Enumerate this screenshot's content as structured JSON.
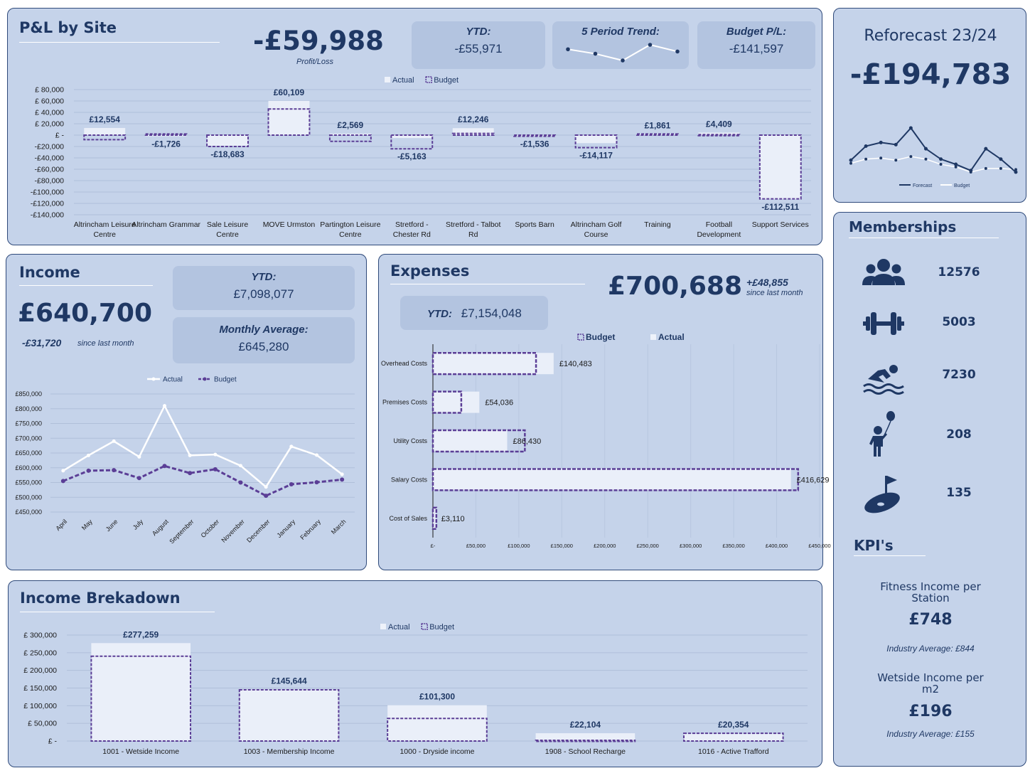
{
  "pl": {
    "title": "P&L by Site",
    "total": "-£59,988",
    "total_label": "Profit/Loss",
    "ytd_label": "YTD:",
    "ytd_value": "-£55,971",
    "trend_label": "5 Period Trend:",
    "trend_values": [
      3,
      1,
      -2,
      5,
      2
    ],
    "budget_label": "Budget P/L:",
    "budget_value": "-£141,597"
  },
  "reforecast": {
    "title": "Reforecast 23/24",
    "value": "-£194,783",
    "legend": [
      "Forecast",
      "Budget"
    ],
    "forecast": [
      -22,
      5,
      12,
      8,
      40,
      0,
      -20,
      -30,
      -42,
      0,
      -20,
      -45
    ],
    "budget": [
      -28,
      -20,
      -18,
      -22,
      -15,
      -20,
      -30,
      -35,
      -45,
      -38,
      -38,
      -40
    ]
  },
  "memberships": {
    "title": "Memberships",
    "items": [
      {
        "icon": "group-icon",
        "value": "12576"
      },
      {
        "icon": "dumbbell-icon",
        "value": "5003"
      },
      {
        "icon": "swimmer-icon",
        "value": "7230"
      },
      {
        "icon": "child-balloon-icon",
        "value": "208"
      },
      {
        "icon": "golf-icon",
        "value": "135"
      }
    ]
  },
  "kpis": {
    "title": "KPI's",
    "items": [
      {
        "label1": "Fitness Income per",
        "label2": "Station",
        "value": "£748",
        "avg": "Industry Average: £844"
      },
      {
        "label1": "Wetside Income per",
        "label2": "m2",
        "value": "£196",
        "avg": "Industry Average: £155"
      }
    ]
  },
  "income": {
    "title": "Income",
    "value": "£640,700",
    "change": "-£31,720",
    "change_label": "since last month",
    "ytd_label": "YTD:",
    "ytd_value": "£7,098,077",
    "avg_label": "Monthly Average:",
    "avg_value": "£645,280"
  },
  "expenses": {
    "title": "Expenses",
    "value": "£700,688",
    "change": "+£48,855",
    "change_label": "since last month",
    "ytd_label": "YTD:",
    "ytd_value": "£7,154,048"
  },
  "breakdown": {
    "title": "Income Brekadown"
  },
  "colors": {
    "panel": "#c5d3ea",
    "dark": "#1f3864",
    "budget": "#5b3e96",
    "actual": "#eaeff9"
  },
  "chart_data": [
    {
      "type": "bar",
      "title": "P&L by Site",
      "categories": [
        "Altrincham Leisure Centre",
        "Altrincham Grammar",
        "Sale Leisure Centre",
        "MOVE Urmston",
        "Partington Leisure Centre",
        "Stretford - Chester Rd",
        "Stretford - Talbot Rd",
        "Sports Barn",
        "Altrincham Golf Course",
        "Training",
        "Football Development",
        "Support Services"
      ],
      "series": [
        {
          "name": "Actual",
          "values": [
            12554,
            -1726,
            -18683,
            60109,
            2569,
            -5163,
            12246,
            -1536,
            -14117,
            1861,
            4409,
            -112511
          ]
        },
        {
          "name": "Budget",
          "values": [
            -8000,
            2000,
            -20000,
            46000,
            -11000,
            -24000,
            3000,
            -2000,
            -22000,
            2000,
            1000,
            -112000
          ]
        }
      ],
      "data_labels": [
        "£12,554",
        "-£1,726",
        "-£18,683",
        "£60,109",
        "£2,569",
        "-£5,163",
        "£12,246",
        "-£1,536",
        "-£14,117",
        "£1,861",
        "£4,409",
        "-£112,511"
      ],
      "y_ticks": [
        "£ 80,000",
        "£ 60,000",
        "£ 40,000",
        "£ 20,000",
        "£ -",
        "-£20,000",
        "-£40,000",
        "-£60,000",
        "-£80,000",
        "-£100,000",
        "-£120,000",
        "-£140,000"
      ],
      "ylim": [
        -140000,
        80000
      ],
      "legend": "top-center"
    },
    {
      "type": "line",
      "title": "Income",
      "categories": [
        "April",
        "May",
        "June",
        "July",
        "August",
        "September",
        "October",
        "November",
        "December",
        "January",
        "February",
        "March"
      ],
      "series": [
        {
          "name": "Actual",
          "values": [
            590000,
            642000,
            690000,
            637000,
            810000,
            642000,
            645000,
            607000,
            535000,
            672000,
            643000,
            578000
          ]
        },
        {
          "name": "Budget",
          "values": [
            555000,
            590000,
            592000,
            565000,
            606000,
            582000,
            595000,
            550000,
            505000,
            544000,
            551000,
            560000
          ]
        }
      ],
      "y_ticks": [
        "£850,000",
        "£800,000",
        "£750,000",
        "£700,000",
        "£650,000",
        "£600,000",
        "£550,000",
        "£500,000",
        "£450,000"
      ],
      "ylim": [
        450000,
        850000
      ],
      "legend": "top-center"
    },
    {
      "type": "bar",
      "title": "Expenses",
      "categories": [
        "Overhead Costs",
        "Premises Costs",
        "Utility Costs",
        "Salary Costs",
        "Cost of Sales"
      ],
      "series": [
        {
          "name": "Actual",
          "values": [
            140483,
            54036,
            86430,
            416629,
            3110
          ]
        },
        {
          "name": "Budget",
          "values": [
            120000,
            33000,
            107000,
            425000,
            4000
          ]
        }
      ],
      "data_labels": [
        "£140,483",
        "£54,036",
        "£86,430",
        "£416,629",
        "£3,110"
      ],
      "x_ticks": [
        "£-",
        "£50,000",
        "£100,000",
        "£150,000",
        "£200,000",
        "£250,000",
        "£300,000",
        "£350,000",
        "£400,000",
        "£450,000"
      ],
      "xlim": [
        0,
        450000
      ],
      "legend": "top-center"
    },
    {
      "type": "bar",
      "title": "Income Brekadown",
      "categories": [
        "1001 - Wetside Income",
        "1003 - Membership Income",
        "1000 - Dryside income",
        "1908 - School Recharge",
        "1016 - Active Trafford"
      ],
      "series": [
        {
          "name": "Actual",
          "values": [
            277259,
            145644,
            101300,
            22104,
            20354
          ]
        },
        {
          "name": "Budget",
          "values": [
            240000,
            145000,
            64000,
            2000,
            22000
          ]
        }
      ],
      "data_labels": [
        "£277,259",
        "£145,644",
        "£101,300",
        "£22,104",
        "£20,354"
      ],
      "y_ticks": [
        "£ 300,000",
        "£ 250,000",
        "£ 200,000",
        "£ 150,000",
        "£ 100,000",
        "£ 50,000",
        "£ -"
      ],
      "ylim": [
        0,
        300000
      ],
      "legend": "top-center"
    }
  ]
}
